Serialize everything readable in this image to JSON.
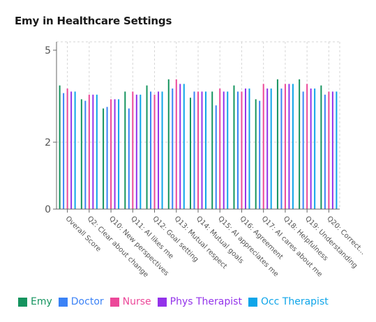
{
  "chart_data": {
    "type": "bar",
    "title": "Emy in Healthcare Settings",
    "categories": [
      "Overall Score",
      "Q2: Clear about change",
      "Q10: New perspectives",
      "Q11: AI likes me",
      "Q12: Goal setting",
      "Q13: Mutual respect",
      "Q14: Mutual goals",
      "Q15: AI appreciates me",
      "Q16: Agreement",
      "Q17: AI cares about me",
      "Q18: Helpfulness",
      "Q19: Understanding",
      "Q20: Correct..."
    ],
    "series": [
      {
        "name": "Emy",
        "color": "#15945f",
        "values": [
          3.85,
          3.4,
          3.1,
          3.65,
          3.85,
          4.05,
          3.45,
          3.65,
          3.85,
          3.4,
          4.05,
          4.05,
          3.85
        ]
      },
      {
        "name": "Doctor",
        "color": "#3b82f6",
        "values": [
          3.6,
          3.35,
          3.15,
          3.1,
          3.65,
          3.75,
          3.65,
          3.2,
          3.65,
          3.35,
          3.75,
          3.65,
          3.55
        ]
      },
      {
        "name": "Nurse",
        "color": "#ec4899",
        "values": [
          3.75,
          3.55,
          3.4,
          3.65,
          3.55,
          4.05,
          3.65,
          3.75,
          3.65,
          3.9,
          3.9,
          3.9,
          3.65
        ]
      },
      {
        "name": "Phys Therapist",
        "color": "#9333ea",
        "values": [
          3.65,
          3.55,
          3.4,
          3.55,
          3.65,
          3.9,
          3.65,
          3.65,
          3.75,
          3.75,
          3.9,
          3.75,
          3.65
        ]
      },
      {
        "name": "Occ Therapist",
        "color": "#0ea5e9",
        "values": [
          3.65,
          3.55,
          3.4,
          3.55,
          3.65,
          3.9,
          3.65,
          3.65,
          3.75,
          3.75,
          3.9,
          3.75,
          3.65
        ]
      }
    ],
    "yticks": [
      "0",
      "2",
      "5"
    ],
    "ylim": [
      0,
      5.2
    ],
    "grid": true,
    "legend": "bottom"
  }
}
